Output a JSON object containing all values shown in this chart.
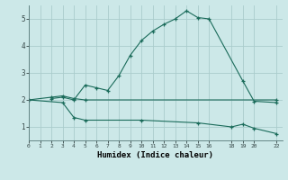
{
  "xlabel": "Humidex (Indice chaleur)",
  "background_color": "#cce8e8",
  "grid_color": "#aacccc",
  "line_color": "#1a6b5a",
  "line1_x": [
    2,
    3,
    4,
    5,
    6,
    7,
    8,
    9,
    10,
    11,
    12,
    13,
    14,
    15,
    16,
    19,
    20,
    22
  ],
  "line1_y": [
    2.05,
    2.1,
    2.0,
    2.55,
    2.45,
    2.35,
    2.9,
    3.65,
    4.2,
    4.55,
    4.8,
    5.0,
    5.3,
    5.05,
    5.0,
    2.7,
    1.95,
    1.9
  ],
  "line2_x": [
    0,
    2,
    3,
    4,
    5,
    22
  ],
  "line2_y": [
    2.0,
    2.1,
    2.15,
    2.05,
    2.0,
    2.0
  ],
  "line3_x": [
    0,
    3,
    4,
    5,
    10,
    15,
    18,
    19,
    20,
    22
  ],
  "line3_y": [
    2.0,
    1.9,
    1.35,
    1.25,
    1.25,
    1.15,
    1.0,
    1.1,
    0.95,
    0.75
  ],
  "xlim": [
    0,
    22.5
  ],
  "ylim": [
    0.5,
    5.5
  ],
  "xtick_positions": [
    0,
    1,
    2,
    3,
    4,
    5,
    6,
    7,
    8,
    9,
    10,
    11,
    12,
    13,
    14,
    15,
    16,
    18,
    19,
    20,
    22
  ],
  "xtick_labels": [
    "0",
    "1",
    "2",
    "3",
    "4",
    "5",
    "6",
    "7",
    "8",
    "9",
    "10",
    "11",
    "12",
    "13",
    "14",
    "15",
    "16",
    "18",
    "19",
    "20",
    "22"
  ],
  "yticks": [
    1,
    2,
    3,
    4,
    5
  ]
}
